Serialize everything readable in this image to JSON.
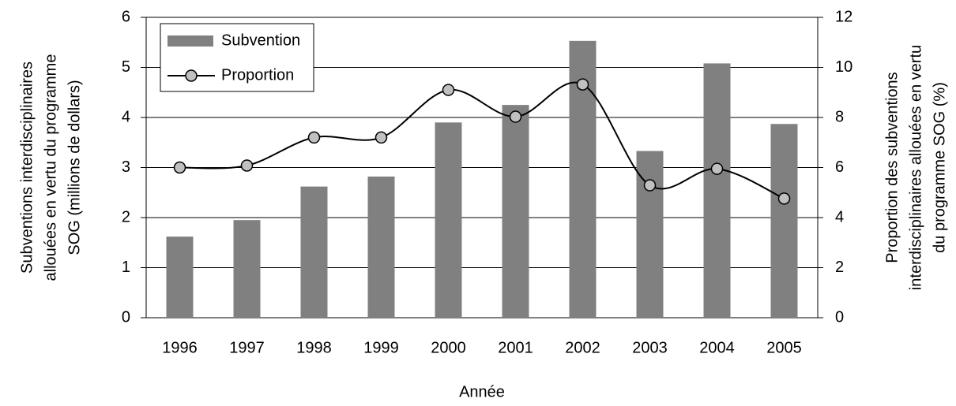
{
  "chart_data": {
    "type": "bar-line",
    "categories": [
      "1996",
      "1997",
      "1998",
      "1999",
      "2000",
      "2001",
      "2002",
      "2003",
      "2004",
      "2005"
    ],
    "series": [
      {
        "name": "Subvention",
        "type": "bar",
        "color": "#808080",
        "values": [
          1.62,
          1.95,
          2.62,
          2.82,
          3.9,
          4.25,
          5.53,
          3.33,
          5.08,
          3.87
        ]
      },
      {
        "name": "Proportion",
        "type": "line",
        "axis": "y2",
        "color": "#000000",
        "marker_color": "#c0c0c0",
        "values": [
          6.0,
          6.08,
          7.2,
          7.2,
          9.1,
          8.03,
          9.32,
          5.29,
          5.95,
          4.76
        ]
      }
    ],
    "x_label": "Année",
    "y_label": [
      "Subventions interdisciplinaires",
      "allouées en vertu du programme",
      "SOG (millions de dollars)"
    ],
    "y2_label": [
      "Proportion des subventions",
      "interdisciplinaires allouées en vertu",
      "du programme SOG (%)"
    ],
    "ylim": [
      0,
      6
    ],
    "yticks": [
      0,
      1,
      2,
      3,
      4,
      5,
      6
    ],
    "y2lim": [
      0,
      12
    ],
    "y2ticks": [
      0,
      2,
      4,
      6,
      8,
      10,
      12
    ],
    "grid": true,
    "legend": "upper left"
  }
}
